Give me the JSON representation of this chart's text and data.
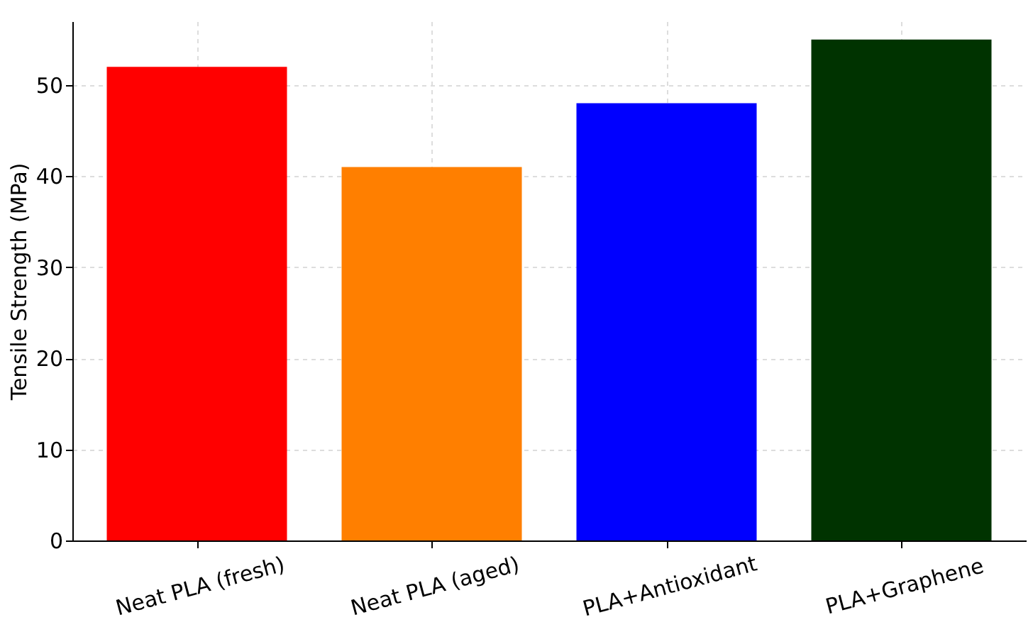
{
  "chart_data": {
    "type": "bar",
    "ylabel": "Tensile Strength (MPa)",
    "categories": [
      "Neat PLA (fresh)",
      "Neat PLA (aged)",
      "PLA+Antioxidant",
      "PLA+Graphene"
    ],
    "values": [
      52,
      41,
      48,
      55
    ],
    "colors": [
      "#ff0000",
      "#ff7f00",
      "#0000ff",
      "#003300"
    ],
    "ylim": [
      0,
      57
    ],
    "yticks": [
      0,
      10,
      20,
      30,
      40,
      50
    ],
    "grid": true
  }
}
